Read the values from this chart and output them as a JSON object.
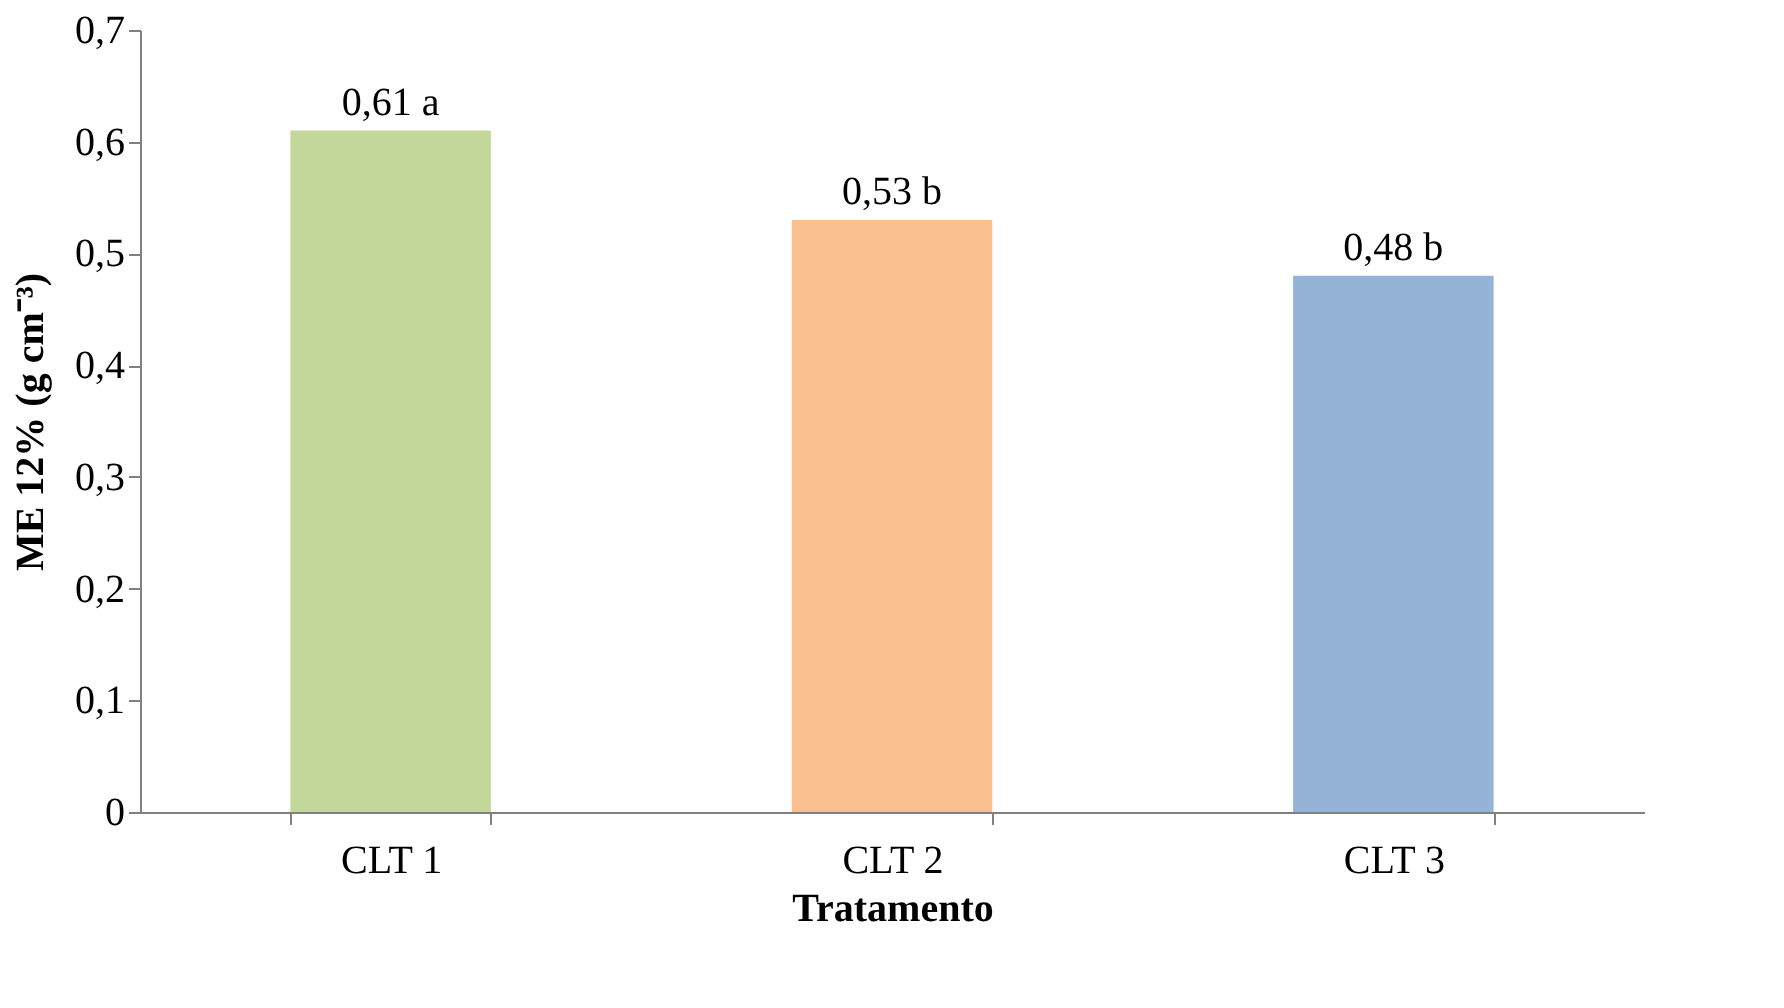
{
  "chart_data": {
    "type": "bar",
    "categories": [
      "CLT 1",
      "CLT 2",
      "CLT 3"
    ],
    "values": [
      0.61,
      0.53,
      0.48
    ],
    "colors": [
      "#c4d79b",
      "#fac090",
      "#95b3d7"
    ],
    "value_labels": [
      "0,61  a",
      "0,53  b",
      "0,48  b"
    ],
    "xlabel": "Tratamento",
    "ylabel": "ME 12% (g cm⁻³)",
    "ylim": [
      0,
      0.7
    ],
    "yticks": [
      0,
      {
        "value": 0.1,
        "label": "0,1"
      },
      {
        "value": 0.2,
        "label": "0,2"
      },
      {
        "value": 0.3,
        "label": "0,3"
      },
      {
        "value": 0.4,
        "label": "0,4"
      },
      {
        "value": 0.5,
        "label": "0,5"
      },
      {
        "value": 0.6,
        "label": "0,6"
      },
      {
        "value": 0.7,
        "label": "0,7"
      }
    ],
    "grid": false
  }
}
